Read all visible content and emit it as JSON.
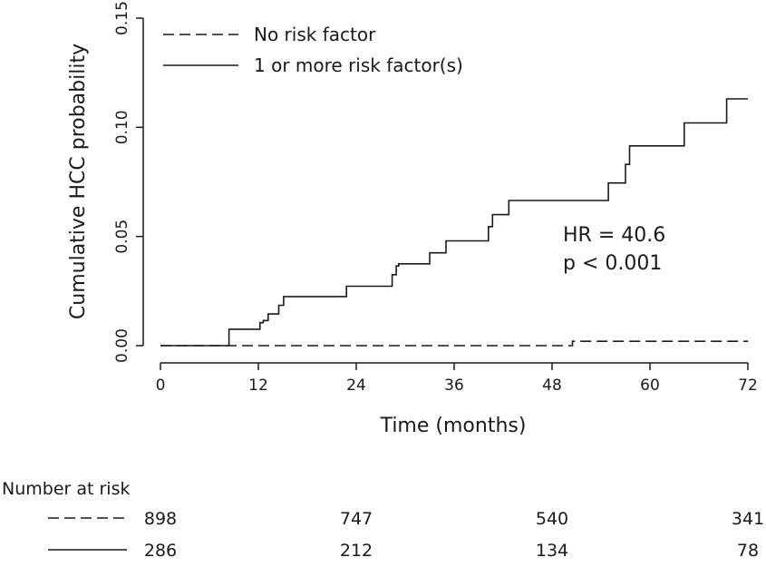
{
  "chart_data": {
    "type": "line",
    "title": "",
    "xlabel": "Time (months)",
    "ylabel": "Cumulative HCC probability",
    "xlim": [
      0,
      72
    ],
    "ylim": [
      0,
      0.15
    ],
    "x_ticks": [
      0,
      12,
      24,
      36,
      48,
      60,
      72
    ],
    "x_tick_labels": [
      "0",
      "12",
      "24",
      "36",
      "48",
      "60",
      "72"
    ],
    "y_ticks": [
      0,
      0.05,
      0.1,
      0.15
    ],
    "y_tick_labels": [
      "0.00",
      "0.05",
      "0.10",
      "0.15"
    ],
    "grid": false,
    "legend_position": "top-left",
    "series": [
      {
        "name": "No risk factor",
        "style": "dashed",
        "x": [
          0,
          50.5,
          72
        ],
        "y": [
          0,
          0.002,
          0.002
        ]
      },
      {
        "name": "1 or more risk factor(s)",
        "style": "solid",
        "x": [
          0,
          8.4,
          12.2,
          12.6,
          13.2,
          14.5,
          15.1,
          22.8,
          28.4,
          28.9,
          29.2,
          33,
          35,
          40.2,
          40.7,
          42.7,
          54.9,
          57,
          57.5,
          64.2,
          69.4,
          72
        ],
        "y": [
          0,
          0.0075,
          0.0105,
          0.0115,
          0.0145,
          0.0185,
          0.0225,
          0.0272,
          0.0325,
          0.0365,
          0.0375,
          0.0425,
          0.048,
          0.0545,
          0.06,
          0.0665,
          0.0745,
          0.083,
          0.0915,
          0.102,
          0.113,
          0.113
        ]
      }
    ],
    "annotations": [
      "HR = 40.6",
      "p < 0.001"
    ]
  },
  "risk_table": {
    "title": "Number at risk",
    "rows": [
      {
        "style": "dashed",
        "values": [
          "898",
          "747",
          "540",
          "341"
        ]
      },
      {
        "style": "solid",
        "values": [
          "286",
          "212",
          "134",
          "78"
        ]
      }
    ]
  },
  "colors": {
    "line": "#1a1a1a"
  }
}
